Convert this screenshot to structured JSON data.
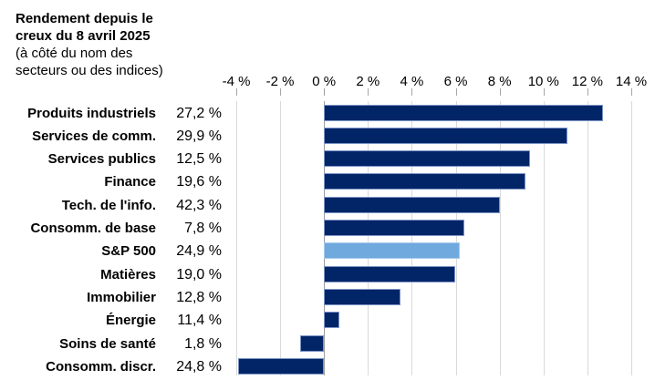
{
  "title": {
    "line1": "Rendement depuis le",
    "line2": "creux du 8 avril 2025",
    "line3": "(à côté du nom des",
    "line4": "secteurs ou des indices)"
  },
  "chart_data": {
    "type": "bar",
    "orientation": "horizontal",
    "title": "Rendement depuis le creux du 8 avril 2025 (à côté du nom des secteurs ou des indices)",
    "categories": [
      "Produits industriels",
      "Services de comm.",
      "Services publics",
      "Finance",
      "Tech. de l'info.",
      "Consomm. de base",
      "S&P 500",
      "Matières",
      "Immobilier",
      "Énergie",
      "Soins de santé",
      "Consomm. discr."
    ],
    "side_labels": [
      "27,2 %",
      "29,9 %",
      "12,5 %",
      "19,6 %",
      "42,3 %",
      "7,8 %",
      "24,9 %",
      "19,0 %",
      "12,8 %",
      "11,4 %",
      "1,8 %",
      "24,8 %"
    ],
    "values": [
      12.7,
      11.1,
      9.4,
      9.2,
      8.0,
      6.4,
      6.2,
      6.0,
      3.5,
      0.7,
      -1.1,
      -3.9
    ],
    "highlight_category": "S&P 500",
    "highlight_index": 6,
    "x_tick_labels": [
      "-4 %",
      "-2 %",
      "0 %",
      "2 %",
      "4 %",
      "6 %",
      "8 %",
      "10 %",
      "12 %",
      "14 %"
    ],
    "x_tick_values": [
      -4,
      -2,
      0,
      2,
      4,
      6,
      8,
      10,
      12,
      14
    ],
    "xlim": [
      -4,
      14
    ],
    "gridlines": "vertical",
    "legend": "none",
    "colors": {
      "bar": "#022568",
      "bar_border": "#7d95c6",
      "highlight": "#6FA9DE",
      "highlight_border": "#a8cbec",
      "gridline": "#d9d9d9",
      "zero_line": "#9e9e9e",
      "tick": "#a6a6a6",
      "text": "#000000"
    }
  }
}
